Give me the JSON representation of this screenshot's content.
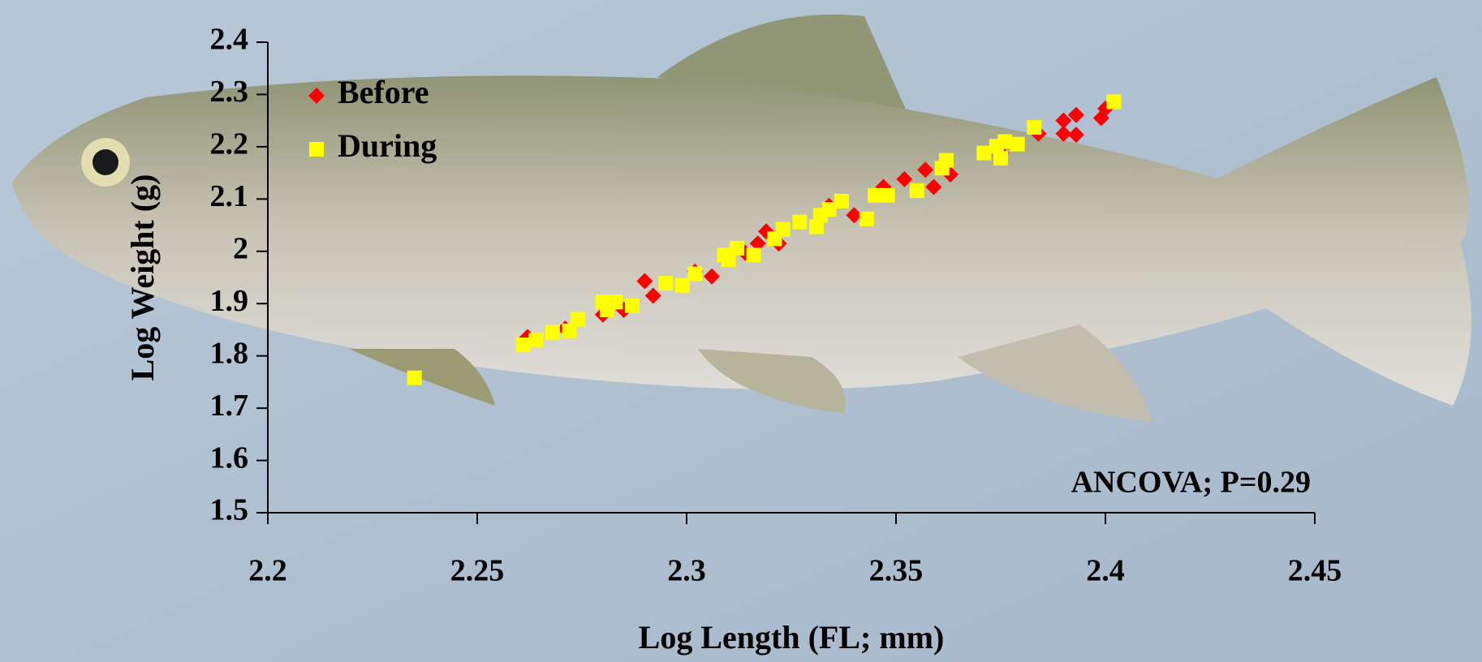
{
  "chart_data": {
    "type": "scatter",
    "x_label": "Log Length (FL; mm)",
    "y_label": "Log Weight (g)",
    "annotation": "ANCOVA; P=0.29",
    "xlim": [
      2.2,
      2.45
    ],
    "xticks": [
      2.2,
      2.25,
      2.3,
      2.35,
      2.4,
      2.45
    ],
    "ylim": [
      1.5,
      2.4
    ],
    "yticks": [
      1.5,
      1.6,
      1.7,
      1.8,
      1.9,
      2,
      2.1,
      2.2,
      2.3,
      2.4
    ],
    "legend": "top-left",
    "series": [
      {
        "name": "Before",
        "color": "#ff0000",
        "marker": "diamond",
        "x": [
          2.262,
          2.271,
          2.28,
          2.285,
          2.29,
          2.292,
          2.302,
          2.306,
          2.314,
          2.317,
          2.319,
          2.322,
          2.334,
          2.34,
          2.347,
          2.352,
          2.357,
          2.359,
          2.363,
          2.375,
          2.384,
          2.39,
          2.39,
          2.393,
          2.393,
          2.399,
          2.4
        ],
        "values": [
          1.836,
          1.852,
          1.879,
          1.888,
          1.943,
          1.915,
          1.961,
          1.952,
          1.997,
          2.015,
          2.038,
          2.015,
          2.087,
          2.069,
          2.123,
          2.138,
          2.156,
          2.123,
          2.147,
          2.188,
          2.225,
          2.25,
          2.225,
          2.261,
          2.223,
          2.255,
          2.273
        ]
      },
      {
        "name": "During",
        "color": "#ffff00",
        "marker": "square",
        "x": [
          2.235,
          2.261,
          2.264,
          2.268,
          2.272,
          2.274,
          2.28,
          2.281,
          2.283,
          2.287,
          2.295,
          2.299,
          2.302,
          2.309,
          2.31,
          2.312,
          2.316,
          2.321,
          2.323,
          2.327,
          2.331,
          2.332,
          2.334,
          2.337,
          2.343,
          2.345,
          2.348,
          2.355,
          2.361,
          2.362,
          2.371,
          2.374,
          2.375,
          2.376,
          2.379,
          2.383,
          2.402
        ],
        "values": [
          1.758,
          1.821,
          1.83,
          1.845,
          1.848,
          1.87,
          1.903,
          1.888,
          1.903,
          1.896,
          1.939,
          1.935,
          1.957,
          1.993,
          1.984,
          2.006,
          1.993,
          2.024,
          2.042,
          2.056,
          2.047,
          2.069,
          2.08,
          2.096,
          2.062,
          2.107,
          2.107,
          2.116,
          2.159,
          2.174,
          2.188,
          2.201,
          2.178,
          2.21,
          2.205,
          2.237,
          2.286
        ]
      }
    ]
  }
}
